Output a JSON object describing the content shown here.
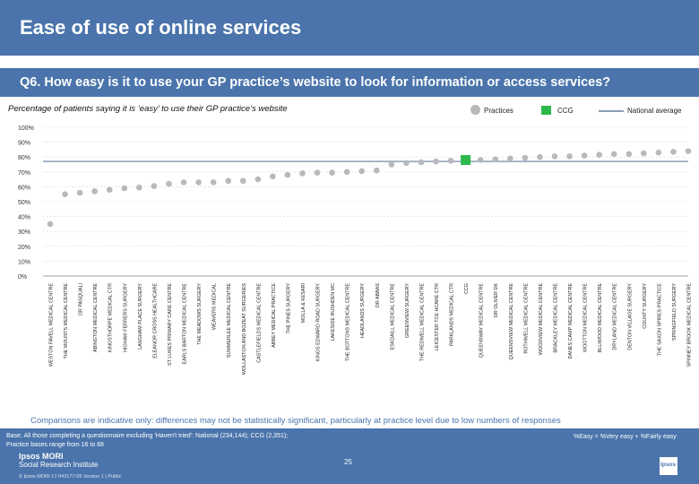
{
  "header": {
    "title": "Ease of use of online services"
  },
  "question": "Q6. How easy is it to use your GP practice’s website to look for information or access services?",
  "legend": {
    "practices": "Practices",
    "ccg": "CCG",
    "national": "National average"
  },
  "footer": {
    "note": "Comparisons are indicative only: differences may not be statistically significant, particularly at practice level due to low numbers of responses",
    "base_line1": "Base: All those completing a questionnaire excluding 'Haven't tried': National (234,144); CCG (2,351);",
    "base_line2": "Practice bases range from 16 to 68",
    "key": "%Easy = %Very easy + %Fairly easy",
    "page": "25",
    "brand_line1": "Ipsos MORI",
    "brand_line2": "Social Research Institute",
    "credit": "© Ipsos MORI     17-042177-05 Version 1 | Public",
    "logo": "Ipsos"
  },
  "colors": {
    "band": "#4a74ab",
    "practice": "#b7b9bb",
    "ccg": "#2db84b",
    "national": "#8a9db8"
  },
  "chart_data": {
    "type": "scatter",
    "subtitle": "Percentage of patients saying it is ‘easy’ to use their GP practice’s website",
    "yticks": [
      "0%",
      "10%",
      "20%",
      "30%",
      "40%",
      "50%",
      "60%",
      "70%",
      "80%",
      "90%",
      "100%"
    ],
    "ylim": [
      0,
      100
    ],
    "national_average": 77,
    "categories": [
      "WESTON FAVELL MEDICAL CENTRE",
      "THE MOUNTS MEDICAL CENTRE",
      "DR PASQUALI",
      "ABINGTON MEDICAL CENTRE",
      "KINGSTHORPE MEDICAL CTR",
      "HIGHAM FERRERS SURGERY",
      "LANGHAM PLACE SURGERY",
      "ELEANOR CROSS HEALTHCARE",
      "ST LUKES PRIMARY CARE CENTRE",
      "EARLS BARTON MEDICAL CENTRE",
      "THE MEADOWS SURGERY",
      "WEAVERS MEDICAL",
      "SUMMERLEE MEDICAL CENTRE",
      "WOLLASTON AND BOZEAT SURGERIES",
      "CASTLEFIELDS MEDICAL CENTRE",
      "ABBEY MEDICAL PRACTICE",
      "THE PINES SURGERY",
      "MOLLA & KESARI",
      "KINGS EDWARD ROAD SURGERY",
      "LAKESIDE RUSHDEN MC",
      "THE BOTTONS MEDICAL CENTRE",
      "HEADLANDS SURGERY",
      "DR ABBAS",
      "ESKDAILL MEDICAL CENTRE",
      "GREENVIEW SURGERY",
      "THE REDWELL MEDICAL CENTRE",
      "LEICESTER TCE HCARE CTR",
      "PARKLANDS MEDICAL CTR",
      "CCG",
      "QUEENSWAY MEDICAL CENTRE",
      "DR OLIVER DK",
      "QUEENSVIEW MEDICAL CENTRE",
      "ROTHWELL MEDICAL CENTRE",
      "WOODVIEW MEDICAL CENTRE",
      "BRACKLEY MEDICAL CENTRE",
      "DANES CAMP MEDICAL CENTRE",
      "WOOTTON MEDICAL CENTRE",
      "BLLIWOOD MEDICAL CENTRE",
      "DRYLAND MEDICAL CENTRE",
      "DENTON VILLAGE SURGERY",
      "COUNTY SURGERY",
      "THE SAXON SPIRES PRACTICE",
      "SPRINGFIELD SURGERY",
      "SPINNEY BROOK MEDICAL CENTRE"
    ],
    "values": [
      35,
      55,
      56,
      57,
      58,
      59,
      59.5,
      60.5,
      62,
      63,
      63,
      63,
      64,
      64,
      65,
      67,
      68,
      69,
      69.5,
      69.5,
      70,
      70.5,
      71,
      75,
      76,
      76.5,
      77,
      77.5,
      78,
      78,
      78.5,
      79,
      79.5,
      80,
      80.5,
      80.5,
      81,
      81.5,
      82,
      82,
      82.5,
      83,
      83.5,
      84
    ],
    "ccg_index": 28
  }
}
